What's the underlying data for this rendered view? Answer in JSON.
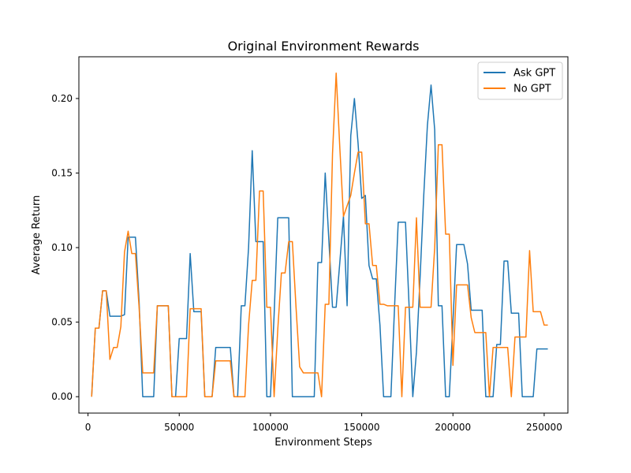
{
  "chart_data": {
    "type": "line",
    "title": "Original Environment Rewards",
    "xlabel": "Environment Steps",
    "ylabel": "Average Return",
    "xlim": [
      -5000,
      263000
    ],
    "ylim": [
      -0.011,
      0.228
    ],
    "xticks": [
      0,
      50000,
      100000,
      150000,
      200000,
      250000
    ],
    "yticks": [
      0.0,
      0.05,
      0.1,
      0.15,
      0.2
    ],
    "xtick_labels": [
      "0",
      "50000",
      "100000",
      "150000",
      "200000",
      "250000"
    ],
    "ytick_labels": [
      "0.00",
      "0.05",
      "0.10",
      "0.15",
      "0.20"
    ],
    "grid": false,
    "legend_position": "top-right",
    "series": [
      {
        "name": "Ask GPT",
        "color": "#1f77b4",
        "points": [
          [
            2000,
            0.0
          ],
          [
            4000,
            0.046
          ],
          [
            6000,
            0.046
          ],
          [
            8000,
            0.071
          ],
          [
            10000,
            0.071
          ],
          [
            12000,
            0.054
          ],
          [
            14000,
            0.054
          ],
          [
            16000,
            0.054
          ],
          [
            18000,
            0.054
          ],
          [
            20000,
            0.055
          ],
          [
            22000,
            0.107
          ],
          [
            24000,
            0.107
          ],
          [
            26000,
            0.107
          ],
          [
            28000,
            0.064
          ],
          [
            30000,
            0.0
          ],
          [
            32000,
            0.0
          ],
          [
            34000,
            0.0
          ],
          [
            36000,
            0.0
          ],
          [
            38000,
            0.061
          ],
          [
            40000,
            0.061
          ],
          [
            42000,
            0.061
          ],
          [
            44000,
            0.061
          ],
          [
            46000,
            0.0
          ],
          [
            48000,
            0.0
          ],
          [
            50000,
            0.039
          ],
          [
            52000,
            0.039
          ],
          [
            54000,
            0.039
          ],
          [
            56000,
            0.096
          ],
          [
            58000,
            0.057
          ],
          [
            60000,
            0.057
          ],
          [
            62000,
            0.057
          ],
          [
            64000,
            0.0
          ],
          [
            66000,
            0.0
          ],
          [
            68000,
            0.0
          ],
          [
            70000,
            0.033
          ],
          [
            72000,
            0.033
          ],
          [
            74000,
            0.033
          ],
          [
            76000,
            0.033
          ],
          [
            78000,
            0.033
          ],
          [
            80000,
            0.0
          ],
          [
            82000,
            0.0
          ],
          [
            84000,
            0.061
          ],
          [
            86000,
            0.061
          ],
          [
            88000,
            0.1
          ],
          [
            90000,
            0.165
          ],
          [
            92000,
            0.104
          ],
          [
            94000,
            0.104
          ],
          [
            96000,
            0.104
          ],
          [
            98000,
            0.0
          ],
          [
            100000,
            0.0
          ],
          [
            102000,
            0.055
          ],
          [
            104000,
            0.12
          ],
          [
            106000,
            0.12
          ],
          [
            108000,
            0.12
          ],
          [
            110000,
            0.12
          ],
          [
            112000,
            0.0
          ],
          [
            114000,
            0.0
          ],
          [
            116000,
            0.0
          ],
          [
            118000,
            0.0
          ],
          [
            120000,
            0.0
          ],
          [
            122000,
            0.0
          ],
          [
            124000,
            0.0
          ],
          [
            126000,
            0.09
          ],
          [
            128000,
            0.09
          ],
          [
            130000,
            0.15
          ],
          [
            132000,
            0.105
          ],
          [
            134000,
            0.06
          ],
          [
            136000,
            0.06
          ],
          [
            138000,
            0.09
          ],
          [
            140000,
            0.121
          ],
          [
            142000,
            0.061
          ],
          [
            144000,
            0.175
          ],
          [
            146000,
            0.2
          ],
          [
            148000,
            0.17
          ],
          [
            150000,
            0.133
          ],
          [
            152000,
            0.135
          ],
          [
            154000,
            0.088
          ],
          [
            156000,
            0.079
          ],
          [
            158000,
            0.079
          ],
          [
            160000,
            0.048
          ],
          [
            162000,
            0.0
          ],
          [
            164000,
            0.0
          ],
          [
            166000,
            0.0
          ],
          [
            168000,
            0.06
          ],
          [
            170000,
            0.117
          ],
          [
            172000,
            0.117
          ],
          [
            174000,
            0.117
          ],
          [
            176000,
            0.06
          ],
          [
            178000,
            0.0
          ],
          [
            180000,
            0.03
          ],
          [
            182000,
            0.08
          ],
          [
            184000,
            0.135
          ],
          [
            186000,
            0.182
          ],
          [
            188000,
            0.209
          ],
          [
            190000,
            0.179
          ],
          [
            192000,
            0.061
          ],
          [
            194000,
            0.061
          ],
          [
            196000,
            0.0
          ],
          [
            198000,
            0.0
          ],
          [
            200000,
            0.05
          ],
          [
            202000,
            0.102
          ],
          [
            204000,
            0.102
          ],
          [
            206000,
            0.102
          ],
          [
            208000,
            0.089
          ],
          [
            210000,
            0.058
          ],
          [
            212000,
            0.058
          ],
          [
            214000,
            0.058
          ],
          [
            216000,
            0.058
          ],
          [
            218000,
            0.0
          ],
          [
            220000,
            0.0
          ],
          [
            222000,
            0.0
          ],
          [
            224000,
            0.035
          ],
          [
            226000,
            0.035
          ],
          [
            228000,
            0.091
          ],
          [
            230000,
            0.091
          ],
          [
            232000,
            0.056
          ],
          [
            234000,
            0.056
          ],
          [
            236000,
            0.056
          ],
          [
            238000,
            0.0
          ],
          [
            240000,
            0.0
          ],
          [
            242000,
            0.0
          ],
          [
            244000,
            0.0
          ],
          [
            246000,
            0.032
          ],
          [
            248000,
            0.032
          ],
          [
            250000,
            0.032
          ],
          [
            252000,
            0.032
          ]
        ]
      },
      {
        "name": "No GPT",
        "color": "#ff7f0e",
        "points": [
          [
            2000,
            0.0
          ],
          [
            4000,
            0.046
          ],
          [
            6000,
            0.046
          ],
          [
            8000,
            0.071
          ],
          [
            10000,
            0.071
          ],
          [
            12000,
            0.025
          ],
          [
            14000,
            0.033
          ],
          [
            16000,
            0.033
          ],
          [
            18000,
            0.047
          ],
          [
            20000,
            0.097
          ],
          [
            22000,
            0.111
          ],
          [
            24000,
            0.096
          ],
          [
            26000,
            0.096
          ],
          [
            28000,
            0.06
          ],
          [
            30000,
            0.016
          ],
          [
            32000,
            0.016
          ],
          [
            34000,
            0.016
          ],
          [
            36000,
            0.016
          ],
          [
            38000,
            0.061
          ],
          [
            40000,
            0.061
          ],
          [
            42000,
            0.061
          ],
          [
            44000,
            0.061
          ],
          [
            46000,
            0.0
          ],
          [
            48000,
            0.0
          ],
          [
            50000,
            0.0
          ],
          [
            52000,
            0.0
          ],
          [
            54000,
            0.0
          ],
          [
            56000,
            0.059
          ],
          [
            58000,
            0.059
          ],
          [
            60000,
            0.059
          ],
          [
            62000,
            0.059
          ],
          [
            64000,
            0.0
          ],
          [
            66000,
            0.0
          ],
          [
            68000,
            0.0
          ],
          [
            70000,
            0.024
          ],
          [
            72000,
            0.024
          ],
          [
            74000,
            0.024
          ],
          [
            76000,
            0.024
          ],
          [
            78000,
            0.024
          ],
          [
            80000,
            0.0
          ],
          [
            82000,
            0.0
          ],
          [
            84000,
            0.0
          ],
          [
            86000,
            0.0
          ],
          [
            88000,
            0.048
          ],
          [
            90000,
            0.078
          ],
          [
            92000,
            0.078
          ],
          [
            94000,
            0.138
          ],
          [
            96000,
            0.138
          ],
          [
            98000,
            0.06
          ],
          [
            100000,
            0.06
          ],
          [
            102000,
            0.0
          ],
          [
            104000,
            0.045
          ],
          [
            106000,
            0.083
          ],
          [
            108000,
            0.083
          ],
          [
            110000,
            0.104
          ],
          [
            112000,
            0.104
          ],
          [
            114000,
            0.06
          ],
          [
            116000,
            0.02
          ],
          [
            118000,
            0.016
          ],
          [
            120000,
            0.016
          ],
          [
            122000,
            0.016
          ],
          [
            124000,
            0.016
          ],
          [
            126000,
            0.016
          ],
          [
            128000,
            0.0
          ],
          [
            130000,
            0.062
          ],
          [
            132000,
            0.062
          ],
          [
            134000,
            0.163
          ],
          [
            136000,
            0.217
          ],
          [
            138000,
            0.167
          ],
          [
            140000,
            0.121
          ],
          [
            142000,
            0.128
          ],
          [
            144000,
            0.135
          ],
          [
            146000,
            0.15
          ],
          [
            148000,
            0.164
          ],
          [
            150000,
            0.164
          ],
          [
            152000,
            0.116
          ],
          [
            154000,
            0.116
          ],
          [
            156000,
            0.088
          ],
          [
            158000,
            0.088
          ],
          [
            160000,
            0.062
          ],
          [
            162000,
            0.062
          ],
          [
            164000,
            0.061
          ],
          [
            166000,
            0.061
          ],
          [
            168000,
            0.061
          ],
          [
            170000,
            0.061
          ],
          [
            172000,
            0.0
          ],
          [
            174000,
            0.06
          ],
          [
            176000,
            0.06
          ],
          [
            178000,
            0.06
          ],
          [
            180000,
            0.12
          ],
          [
            182000,
            0.06
          ],
          [
            184000,
            0.06
          ],
          [
            186000,
            0.06
          ],
          [
            188000,
            0.06
          ],
          [
            190000,
            0.1
          ],
          [
            192000,
            0.169
          ],
          [
            194000,
            0.169
          ],
          [
            196000,
            0.109
          ],
          [
            198000,
            0.109
          ],
          [
            200000,
            0.021
          ],
          [
            202000,
            0.075
          ],
          [
            204000,
            0.075
          ],
          [
            206000,
            0.075
          ],
          [
            208000,
            0.075
          ],
          [
            210000,
            0.053
          ],
          [
            212000,
            0.043
          ],
          [
            214000,
            0.043
          ],
          [
            216000,
            0.043
          ],
          [
            218000,
            0.043
          ],
          [
            220000,
            0.0
          ],
          [
            222000,
            0.033
          ],
          [
            224000,
            0.033
          ],
          [
            226000,
            0.033
          ],
          [
            228000,
            0.033
          ],
          [
            230000,
            0.033
          ],
          [
            232000,
            0.0
          ],
          [
            234000,
            0.04
          ],
          [
            236000,
            0.04
          ],
          [
            238000,
            0.04
          ],
          [
            240000,
            0.04
          ],
          [
            242000,
            0.098
          ],
          [
            244000,
            0.057
          ],
          [
            246000,
            0.057
          ],
          [
            248000,
            0.057
          ],
          [
            250000,
            0.048
          ],
          [
            252000,
            0.048
          ]
        ]
      }
    ]
  }
}
